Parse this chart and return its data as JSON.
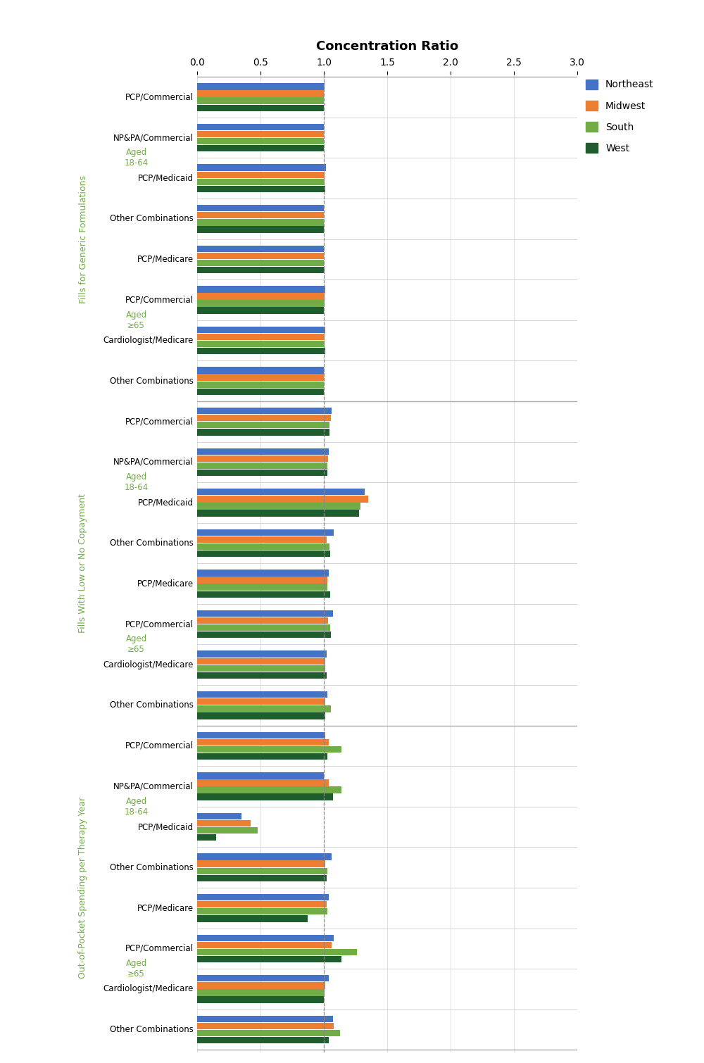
{
  "title": "Concentration Ratio",
  "xlim": [
    0.0,
    3.0
  ],
  "xticks": [
    0.0,
    0.5,
    1.0,
    1.5,
    2.0,
    2.5,
    3.0
  ],
  "colors": {
    "Northeast": "#4472C4",
    "Midwest": "#ED7D31",
    "South": "#70AD47",
    "West": "#1F5C2E"
  },
  "legend_labels": [
    "Northeast",
    "Midwest",
    "South",
    "West"
  ],
  "sections": [
    {
      "ylabel": "Fills for Generic Formulations",
      "ylabel_color": "#70AD47",
      "groups": [
        {
          "label": "Aged\n18-64",
          "label_color": "#70AD47",
          "rows": [
            {
              "name": "PCP/Commercial",
              "values": [
                1.005,
                1.0,
                1.0,
                1.0
              ]
            },
            {
              "name": "NP&PA/Commercial",
              "values": [
                1.0,
                1.0,
                1.0,
                1.0
              ]
            },
            {
              "name": "PCP/Medicaid",
              "values": [
                1.015,
                1.008,
                1.005,
                1.012
              ]
            },
            {
              "name": "Other Combinations",
              "values": [
                1.002,
                1.0,
                1.0,
                1.0
              ]
            }
          ]
        },
        {
          "label": "Aged\n≥65",
          "label_color": "#70AD47",
          "rows": [
            {
              "name": "PCP/Medicare",
              "values": [
                1.0,
                1.0,
                1.0,
                1.008
              ]
            },
            {
              "name": "PCP/Commercial",
              "values": [
                1.012,
                1.005,
                1.003,
                1.0
              ]
            },
            {
              "name": "Cardiologist/Medicare",
              "values": [
                1.01,
                1.005,
                1.005,
                1.012
              ]
            },
            {
              "name": "Other Combinations",
              "values": [
                1.0,
                1.0,
                1.0,
                1.0
              ]
            }
          ]
        }
      ]
    },
    {
      "ylabel": "Fills With Low or No Copayment",
      "ylabel_color": "#70AD47",
      "groups": [
        {
          "label": "Aged\n18-64",
          "label_color": "#70AD47",
          "rows": [
            {
              "name": "PCP/Commercial",
              "values": [
                1.06,
                1.055,
                1.045,
                1.045
              ]
            },
            {
              "name": "NP&PA/Commercial",
              "values": [
                1.04,
                1.035,
                1.03,
                1.03
              ]
            },
            {
              "name": "PCP/Medicaid",
              "values": [
                1.32,
                1.35,
                1.29,
                1.28
              ]
            },
            {
              "name": "Other Combinations",
              "values": [
                1.08,
                1.02,
                1.045,
                1.05
              ]
            }
          ]
        },
        {
          "label": "Aged\n≥65",
          "label_color": "#70AD47",
          "rows": [
            {
              "name": "PCP/Medicare",
              "values": [
                1.04,
                1.03,
                1.03,
                1.05
              ]
            },
            {
              "name": "PCP/Commercial",
              "values": [
                1.07,
                1.035,
                1.05,
                1.055
              ]
            },
            {
              "name": "Cardiologist/Medicare",
              "values": [
                1.02,
                1.01,
                1.01,
                1.02
              ]
            },
            {
              "name": "Other Combinations",
              "values": [
                1.03,
                1.01,
                1.055,
                1.01
              ]
            }
          ]
        }
      ]
    },
    {
      "ylabel": "Out-of-Pocket Spending per Therapy Year",
      "ylabel_color": "#70AD47",
      "groups": [
        {
          "label": "Aged\n18-64",
          "label_color": "#70AD47",
          "rows": [
            {
              "name": "PCP/Commercial",
              "values": [
                1.01,
                1.04,
                1.14,
                1.03
              ]
            },
            {
              "name": "NP&PA/Commercial",
              "values": [
                1.0,
                1.04,
                1.14,
                1.07
              ]
            },
            {
              "name": "PCP/Medicaid",
              "values": [
                0.35,
                0.42,
                0.48,
                0.15
              ]
            },
            {
              "name": "Other Combinations",
              "values": [
                1.06,
                1.01,
                1.03,
                1.02
              ]
            }
          ]
        },
        {
          "label": "Aged\n≥65",
          "label_color": "#70AD47",
          "rows": [
            {
              "name": "PCP/Medicare",
              "values": [
                1.04,
                1.02,
                1.03,
                0.87
              ]
            },
            {
              "name": "PCP/Commercial",
              "values": [
                1.08,
                1.06,
                1.26,
                1.14
              ]
            },
            {
              "name": "Cardiologist/Medicare",
              "values": [
                1.04,
                1.01,
                1.005,
                1.0
              ]
            },
            {
              "name": "Other Combinations",
              "values": [
                1.07,
                1.08,
                1.13,
                1.04
              ]
            }
          ]
        }
      ]
    }
  ]
}
